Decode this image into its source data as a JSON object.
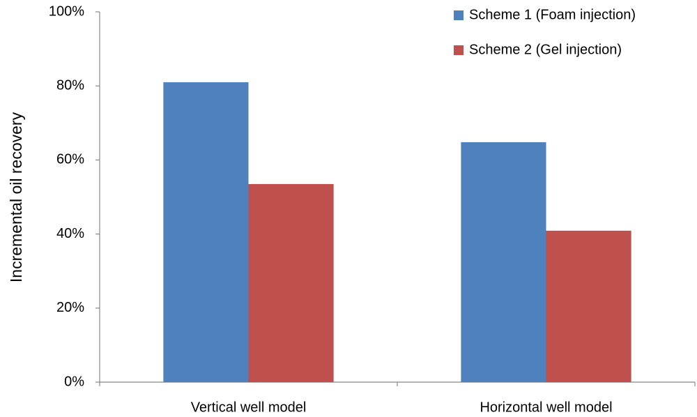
{
  "chart_data": {
    "type": "bar",
    "y_label": "Incremental oil recovery",
    "categories": [
      "Vertical well model",
      "Horizontal well model"
    ],
    "series": [
      {
        "name": "Scheme 1 (Foam injection)",
        "color": "#4f81bd",
        "values": [
          81.0,
          64.8
        ]
      },
      {
        "name": "Scheme 2 (Gel injection)",
        "color": "#c0504d",
        "values": [
          53.5,
          40.9
        ]
      }
    ],
    "ylim": [
      0,
      100
    ],
    "yticks": [
      {
        "value": 0,
        "label": "0%"
      },
      {
        "value": 20,
        "label": "20%"
      },
      {
        "value": 40,
        "label": "40%"
      },
      {
        "value": 60,
        "label": "60%"
      },
      {
        "value": 80,
        "label": "80%"
      },
      {
        "value": 100,
        "label": "100%"
      }
    ],
    "grid": false,
    "legend": "top-right"
  }
}
